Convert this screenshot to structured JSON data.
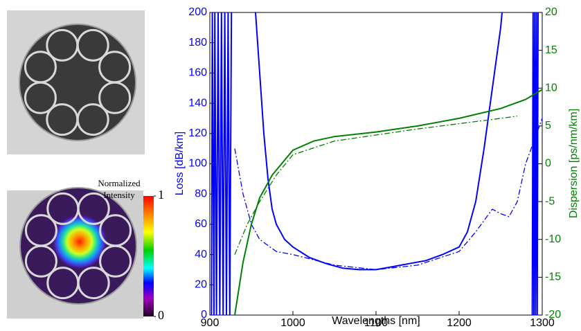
{
  "chart_data": {
    "type": "line",
    "xlabel": "Wavelengths [nm]",
    "ylabel": "Loss [dB/km]",
    "y2label": "Dispersion [ps/nm/km]",
    "xlim": [
      900,
      1300
    ],
    "xticks": [
      900,
      1000,
      1100,
      1200,
      1300
    ],
    "ylim": [
      0,
      200
    ],
    "yticks": [
      0,
      20,
      40,
      60,
      80,
      100,
      120,
      140,
      160,
      180,
      200
    ],
    "y2lim": [
      -20,
      20
    ],
    "y2ticks": [
      -20,
      -15,
      -10,
      -5,
      0,
      5,
      10,
      15,
      20
    ],
    "ycolor": "#0000ff",
    "y2color": "#008000",
    "series": [
      {
        "color": "#0000ff",
        "style": "solid",
        "axis": "y",
        "x": [
          902,
          903,
          905,
          906,
          908,
          910,
          912,
          914,
          916,
          918,
          920,
          922,
          924,
          926,
          null,
          955,
          960,
          965,
          970,
          975,
          980,
          990,
          1000,
          1020,
          1040,
          1060,
          1080,
          1100,
          1120,
          1140,
          1160,
          1180,
          1200,
          1210,
          1220,
          1230,
          1240,
          1250,
          1255,
          null,
          1288,
          1289,
          1290,
          1291,
          1292,
          1293,
          1294,
          1295
        ],
        "values": [
          0,
          200,
          0,
          200,
          0,
          200,
          0,
          200,
          0,
          200,
          0,
          200,
          0,
          200,
          null,
          200,
          160,
          120,
          90,
          70,
          60,
          50,
          45,
          38,
          34,
          31,
          30,
          30,
          32,
          34,
          36,
          40,
          45,
          55,
          75,
          110,
          150,
          190,
          220,
          null,
          0,
          200,
          0,
          200,
          0,
          200,
          0,
          200
        ]
      },
      {
        "color": "#0000ff",
        "style": "dashdot",
        "axis": "y",
        "x": [
          930,
          940,
          950,
          960,
          980,
          1000,
          1050,
          1100,
          1150,
          1200,
          1220,
          1240,
          1250,
          1260,
          1270,
          1280,
          1290,
          1300
        ],
        "values": [
          110,
          80,
          60,
          50,
          42,
          40,
          33,
          30,
          33,
          42,
          55,
          70,
          67,
          65,
          75,
          100,
          115,
          130
        ]
      },
      {
        "color": "#008000",
        "style": "solid",
        "axis": "y2",
        "x": [
          930,
          940,
          950,
          960,
          975,
          1000,
          1025,
          1050,
          1100,
          1150,
          1200,
          1250,
          1280,
          1300
        ],
        "values": [
          -20,
          -13,
          -8,
          -4.5,
          -1.5,
          1.8,
          3,
          3.6,
          4.2,
          5,
          6,
          7.3,
          8.5,
          9.8
        ]
      },
      {
        "color": "#008000",
        "style": "dashdot",
        "axis": "y2",
        "x": [
          930,
          945,
          960,
          980,
          1000,
          1050,
          1100,
          1150,
          1200,
          1250,
          1270
        ],
        "values": [
          -12,
          -8,
          -5,
          -1.5,
          1.2,
          3,
          3.8,
          4.6,
          5.3,
          6,
          6.3
        ]
      }
    ]
  },
  "colorbar": {
    "title_lines": [
      "Normalized",
      "Intensity"
    ],
    "lim": [
      0,
      1
    ],
    "ticks": [
      0,
      1
    ]
  }
}
